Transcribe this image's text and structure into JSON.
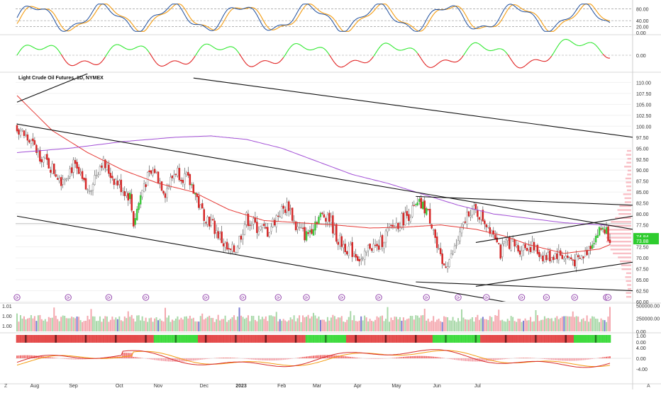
{
  "chart_data": {
    "type": "candlestick",
    "title": "Light Crude Oil Futures, 1D, NYMEX",
    "x_tick_labels": [
      "Aug",
      "Sep",
      "Oct",
      "Nov",
      "Dec",
      "2023",
      "Feb",
      "Mar",
      "Apr",
      "May",
      "Jun",
      "Jul"
    ],
    "price_axis": {
      "ticks": [
        "110.00",
        "107.50",
        "105.00",
        "102.50",
        "100.00",
        "97.50",
        "95.00",
        "92.50",
        "90.00",
        "87.50",
        "85.00",
        "82.50",
        "80.00",
        "77.50",
        "75.00",
        "72.50",
        "70.00",
        "67.50",
        "65.00",
        "62.50",
        "60.00"
      ],
      "range": [
        60,
        112
      ],
      "last_price_tags": [
        "74.84",
        "73.88"
      ]
    },
    "stoch_axis": {
      "ticks": [
        "80.00",
        "40.00",
        "20.00",
        "0.00"
      ],
      "range": [
        0,
        100
      ]
    },
    "momentum_axis": {
      "ticks": [
        "0.00"
      ]
    },
    "volume_axis": {
      "ticks": [
        "500000.00",
        "250000.00",
        "0.00"
      ]
    },
    "volume_left_labels": [
      "1.01",
      "1.00",
      "1.00"
    ],
    "macd_axis": {
      "ticks": [
        "4.00",
        "0.00",
        "-4.00"
      ]
    },
    "corner_labels": {
      "left": "Z",
      "right": "A"
    },
    "price_keypoints": [
      [
        0,
        100
      ],
      [
        10,
        95
      ],
      [
        25,
        88
      ],
      [
        32,
        91
      ],
      [
        40,
        85
      ],
      [
        48,
        92
      ],
      [
        55,
        88
      ],
      [
        64,
        84
      ],
      [
        66,
        78
      ],
      [
        72,
        87
      ],
      [
        78,
        90
      ],
      [
        84,
        85
      ],
      [
        90,
        90
      ],
      [
        96,
        88
      ],
      [
        100,
        86
      ],
      [
        104,
        81
      ],
      [
        110,
        78
      ],
      [
        116,
        74
      ],
      [
        120,
        71
      ],
      [
        124,
        72
      ],
      [
        130,
        79
      ],
      [
        136,
        77
      ],
      [
        142,
        76
      ],
      [
        148,
        80
      ],
      [
        154,
        82
      ],
      [
        158,
        77
      ],
      [
        164,
        75
      ],
      [
        170,
        79
      ],
      [
        176,
        80
      ],
      [
        182,
        74
      ],
      [
        188,
        72
      ],
      [
        192,
        71
      ],
      [
        196,
        69
      ],
      [
        200,
        73
      ],
      [
        204,
        72
      ],
      [
        210,
        76
      ],
      [
        216,
        78
      ],
      [
        222,
        80
      ],
      [
        228,
        82
      ],
      [
        232,
        81
      ],
      [
        236,
        77
      ],
      [
        238,
        72
      ],
      [
        241,
        68
      ],
      [
        246,
        70
      ],
      [
        252,
        76
      ],
      [
        256,
        81
      ],
      [
        262,
        80
      ],
      [
        268,
        77
      ],
      [
        272,
        75
      ],
      [
        274,
        71
      ],
      [
        278,
        74
      ],
      [
        284,
        72
      ],
      [
        290,
        73
      ],
      [
        296,
        71
      ],
      [
        300,
        70
      ],
      [
        306,
        71
      ],
      [
        312,
        70
      ],
      [
        318,
        69
      ],
      [
        322,
        71
      ],
      [
        326,
        74
      ],
      [
        332,
        77
      ],
      [
        334,
        76
      ],
      [
        336,
        74.8
      ]
    ],
    "series": [
      {
        "name": "",
        "kind": "sma-fast",
        "color": "#e53935",
        "keypoints": [
          [
            0,
            107
          ],
          [
            20,
            99
          ],
          [
            40,
            94
          ],
          [
            60,
            90
          ],
          [
            80,
            87
          ],
          [
            100,
            85
          ],
          [
            120,
            81
          ],
          [
            140,
            78.5
          ],
          [
            160,
            78
          ],
          [
            180,
            77.5
          ],
          [
            200,
            76.8
          ],
          [
            220,
            77
          ],
          [
            240,
            77.5
          ],
          [
            260,
            76.5
          ],
          [
            276,
            75
          ],
          [
            290,
            73
          ],
          [
            310,
            71
          ],
          [
            330,
            72
          ],
          [
            336,
            73
          ]
        ]
      },
      {
        "name": "",
        "kind": "sma-slow",
        "color": "#a24fd6",
        "keypoints": [
          [
            0,
            94
          ],
          [
            30,
            95
          ],
          [
            60,
            96.5
          ],
          [
            90,
            97.5
          ],
          [
            110,
            97.8
          ],
          [
            130,
            97
          ],
          [
            150,
            95
          ],
          [
            170,
            92
          ],
          [
            190,
            89
          ],
          [
            210,
            87
          ],
          [
            230,
            84.5
          ],
          [
            250,
            82
          ],
          [
            270,
            80
          ],
          [
            290,
            79
          ],
          [
            310,
            78
          ],
          [
            336,
            77.4
          ]
        ]
      }
    ],
    "trendlines": [
      {
        "from": [
          0,
          105.5
        ],
        "to": [
          40,
          112
        ]
      },
      {
        "from": [
          100,
          111
        ],
        "to": [
          336,
          97.5
        ]
      },
      {
        "from": [
          0,
          100.5
        ],
        "to": [
          336,
          76.5
        ]
      },
      {
        "from": [
          0,
          79.5
        ],
        "to": [
          290,
          59
        ]
      },
      {
        "from": [
          226,
          84
        ],
        "to": [
          336,
          82
        ]
      },
      {
        "from": [
          226,
          64.5
        ],
        "to": [
          336,
          62.5
        ]
      },
      {
        "from": [
          260,
          73.5
        ],
        "to": [
          336,
          79.5
        ]
      },
      {
        "from": [
          260,
          63.5
        ],
        "to": [
          336,
          69
        ]
      }
    ],
    "reference_line": 77.8,
    "stoch_threshold_lines": [
      80,
      40,
      20
    ],
    "marker_glyph": "⟳"
  }
}
